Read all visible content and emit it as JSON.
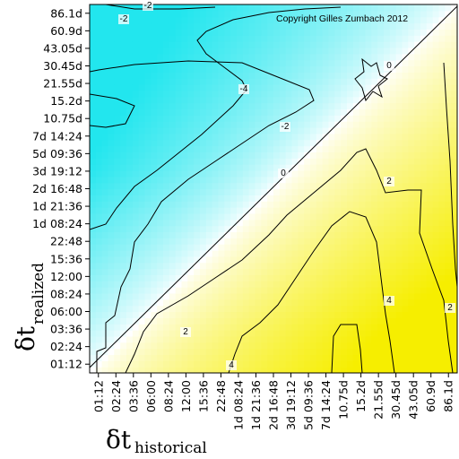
{
  "chart_data": {
    "type": "heatmap",
    "copyright": "Copyright Gilles Zumbach 2012",
    "xlabel_symbol": "δt",
    "xlabel_sub": "historical",
    "ylabel_symbol": "δt",
    "ylabel_sub": "realized",
    "x_ticks": [
      "01:12",
      "02:24",
      "03:36",
      "06:00",
      "08:24",
      "12:00",
      "15:36",
      "22:48",
      "1d 08:24",
      "1d 21:36",
      "2d 16:48",
      "3d 19:12",
      "5d 09:36",
      "7d 14:24",
      "10.75d",
      "15.2d",
      "21.55d",
      "30.45d",
      "43.05d",
      "60.9d",
      "86.1d"
    ],
    "y_ticks": [
      "01:12",
      "02:24",
      "03:36",
      "06:00",
      "08:24",
      "12:00",
      "15:36",
      "22:48",
      "1d 08:24",
      "1d 21:36",
      "2d 16:48",
      "3d 19:12",
      "5d 09:36",
      "7d 14:24",
      "10.75d",
      "15.2d",
      "21.55d",
      "30.45d",
      "43.05d",
      "60.9d",
      "86.1d"
    ],
    "contour_levels": [
      -4,
      -2,
      0,
      2,
      4
    ],
    "contour_labels": [
      "-2",
      "-2",
      "-4",
      "-2",
      "0",
      "0",
      "2",
      "2",
      "4",
      "4",
      "2"
    ],
    "color_scale": {
      "negative": "#22e6ee",
      "zero": "#ffffff",
      "positive": "#f6ee00"
    }
  }
}
